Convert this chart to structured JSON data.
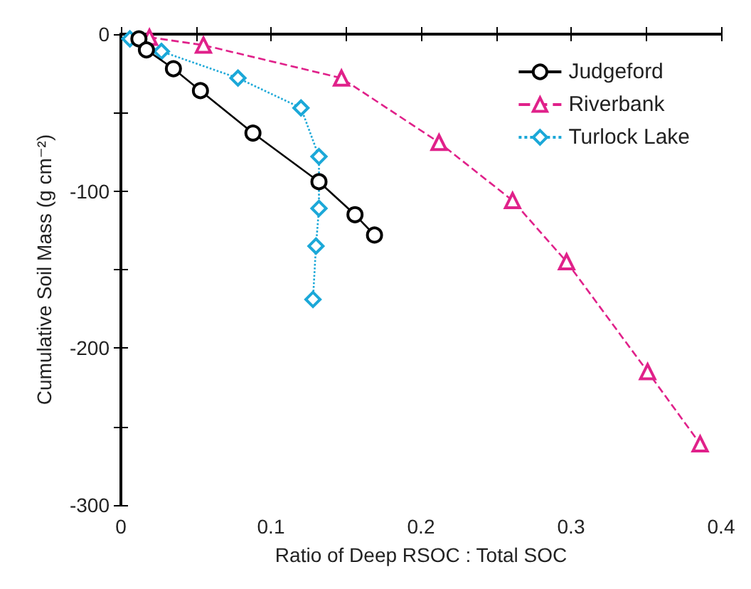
{
  "chart_data": {
    "type": "line",
    "xlabel": "Ratio of Deep RSOC : Total SOC",
    "ylabel": "Cumulative Soil Mass (g cm⁻²)",
    "xlim": [
      0,
      0.4
    ],
    "xticks": [
      0,
      {
        "value": 0.05,
        "label": null
      },
      0.1,
      {
        "value": 0.15,
        "label": null
      },
      0.2,
      {
        "value": 0.25,
        "label": null
      },
      0.3,
      {
        "value": 0.35,
        "label": null
      },
      0.4
    ],
    "ylim": [
      -300,
      0
    ],
    "yticks": [
      -300,
      {
        "value": -250,
        "label": null
      },
      -200,
      {
        "value": -150,
        "label": null
      },
      -100,
      {
        "value": -50,
        "label": null
      },
      0
    ],
    "grid": false,
    "legend": "top right",
    "series": [
      {
        "name": "Judgeford",
        "color": "#000000",
        "marker": "circle",
        "line_style": "solid",
        "x": [
          0.012,
          0.017,
          0.035,
          0.053,
          0.088,
          0.132,
          0.156,
          0.169
        ],
        "values": [
          -3,
          -10,
          -22,
          -36,
          -63,
          -94,
          -115,
          -128
        ]
      },
      {
        "name": "Riverbank",
        "color": "#e0218a",
        "marker": "triangle",
        "line_style": "dashed",
        "x": [
          0.019,
          0.055,
          0.147,
          0.212,
          0.261,
          0.297,
          0.351,
          0.386
        ],
        "values": [
          -2,
          -7,
          -28,
          -69,
          -106,
          -145,
          -215,
          -261
        ]
      },
      {
        "name": "Turlock Lake",
        "color": "#1ba8d8",
        "marker": "diamond",
        "line_style": "dotted",
        "x": [
          0.006,
          0.027,
          0.078,
          0.12,
          0.132,
          0.132,
          0.13,
          0.128
        ],
        "values": [
          -3,
          -11,
          -28,
          -47,
          -78,
          -111,
          -135,
          -169
        ]
      }
    ]
  }
}
